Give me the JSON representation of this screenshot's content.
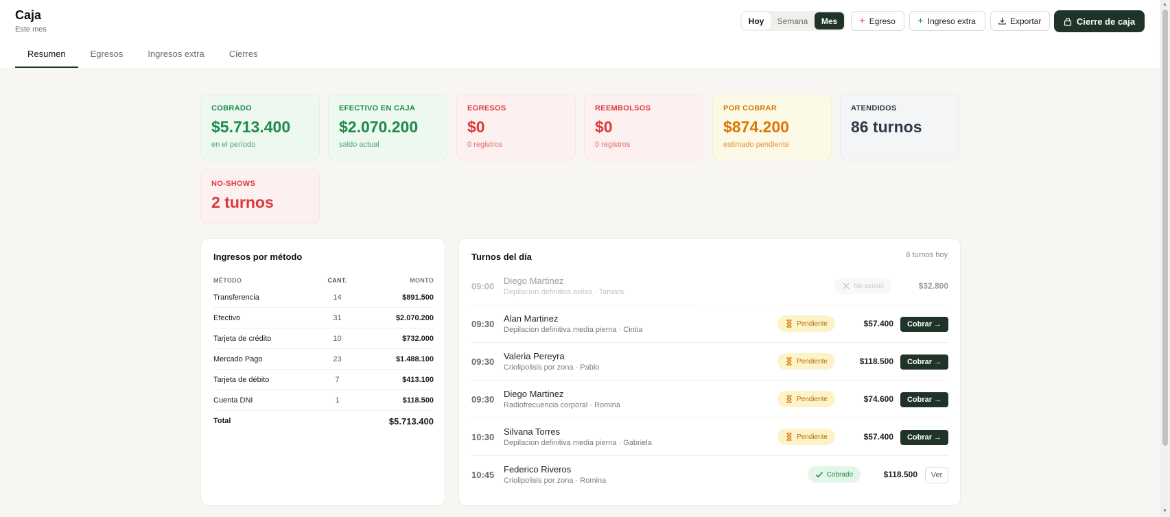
{
  "header": {
    "title": "Caja",
    "subtitle": "Este mes",
    "period": {
      "hoy": "Hoy",
      "semana": "Semana",
      "mes": "Mes",
      "selected": "Mes"
    },
    "egreso_label": "Egreso",
    "ingreso_label": "Ingreso extra",
    "exportar_label": "Exportar",
    "cierre_label": "Cierre de caja",
    "icons": {
      "egreso": "plus-icon",
      "ingreso": "plus-icon",
      "exportar": "download-icon",
      "cierre": "lock-icon"
    }
  },
  "tabs": [
    {
      "label": "Resumen",
      "active": true
    },
    {
      "label": "Egresos",
      "active": false
    },
    {
      "label": "Ingresos extra",
      "active": false
    },
    {
      "label": "Cierres",
      "active": false
    }
  ],
  "stats": {
    "cobrado": {
      "label": "COBRADO",
      "value": "$5.713.400",
      "sub": "en el período"
    },
    "efectivo": {
      "label": "EFECTIVO EN CAJA",
      "value": "$2.070.200",
      "sub": "saldo actual"
    },
    "egresos": {
      "label": "EGRESOS",
      "value": "$0",
      "sub": "0 registros"
    },
    "reembolsos": {
      "label": "REEMBOLSOS",
      "value": "$0",
      "sub": "0 registros"
    },
    "por_cobrar": {
      "label": "POR COBRAR",
      "value": "$874.200",
      "sub": "estimado pendiente"
    },
    "atendidos": {
      "label": "ATENDIDOS",
      "value": "86 turnos"
    },
    "noshows": {
      "label": "NO-SHOWS",
      "value": "2 turnos"
    }
  },
  "colors": {
    "accent_dark": "#1f3328",
    "green": "#1e8a4c",
    "red": "#dc3a3a",
    "orange": "#d97706",
    "slate": "#2f3845"
  },
  "metodos": {
    "title": "Ingresos por método",
    "headers": {
      "metodo": "MÉTODO",
      "cant": "CANT.",
      "monto": "MONTO"
    },
    "rows": [
      {
        "metodo": "Transferencia",
        "cant": "14",
        "monto": "$891.500"
      },
      {
        "metodo": "Efectivo",
        "cant": "31",
        "monto": "$2.070.200"
      },
      {
        "metodo": "Tarjeta de crédito",
        "cant": "10",
        "monto": "$732.000"
      },
      {
        "metodo": "Mercado Pago",
        "cant": "23",
        "monto": "$1.488.100"
      },
      {
        "metodo": "Tarjeta de débito",
        "cant": "7",
        "monto": "$413.100"
      },
      {
        "metodo": "Cuenta DNI",
        "cant": "1",
        "monto": "$118.500"
      }
    ],
    "total_label": "Total",
    "total_value": "$5.713.400"
  },
  "turnos": {
    "title": "Turnos del día",
    "count": "6 turnos hoy",
    "cobrar_label": "Cobrar →",
    "ver_label": "Ver",
    "items": [
      {
        "time": "09:00",
        "name": "Diego Martinez",
        "detail": "Depilacion definitiva axilas · Tamara",
        "status": "No asistió",
        "status_icon": "x-icon",
        "amount": "$32.800"
      },
      {
        "time": "09:30",
        "name": "Alan Martinez",
        "detail": "Depilacion definitiva media pierna · Cintia",
        "status": "Pendiente",
        "status_icon": "hourglass-icon",
        "amount": "$57.400"
      },
      {
        "time": "09:30",
        "name": "Valeria Pereyra",
        "detail": "Criolipolisis por zona · Pablo",
        "status": "Pendiente",
        "status_icon": "hourglass-icon",
        "amount": "$118.500"
      },
      {
        "time": "09:30",
        "name": "Diego Martinez",
        "detail": "Radiofrecuencia corporal · Romina",
        "status": "Pendiente",
        "status_icon": "hourglass-icon",
        "amount": "$74.600"
      },
      {
        "time": "10:30",
        "name": "Silvana Torres",
        "detail": "Depilacion definitiva media pierna · Gabriela",
        "status": "Pendiente",
        "status_icon": "hourglass-icon",
        "amount": "$57.400"
      },
      {
        "time": "10:45",
        "name": "Federico Riveros",
        "detail": "Criolipolisis por zona · Romina",
        "status": "Cobrado",
        "status_icon": "check-icon",
        "amount": "$118.500"
      }
    ]
  }
}
